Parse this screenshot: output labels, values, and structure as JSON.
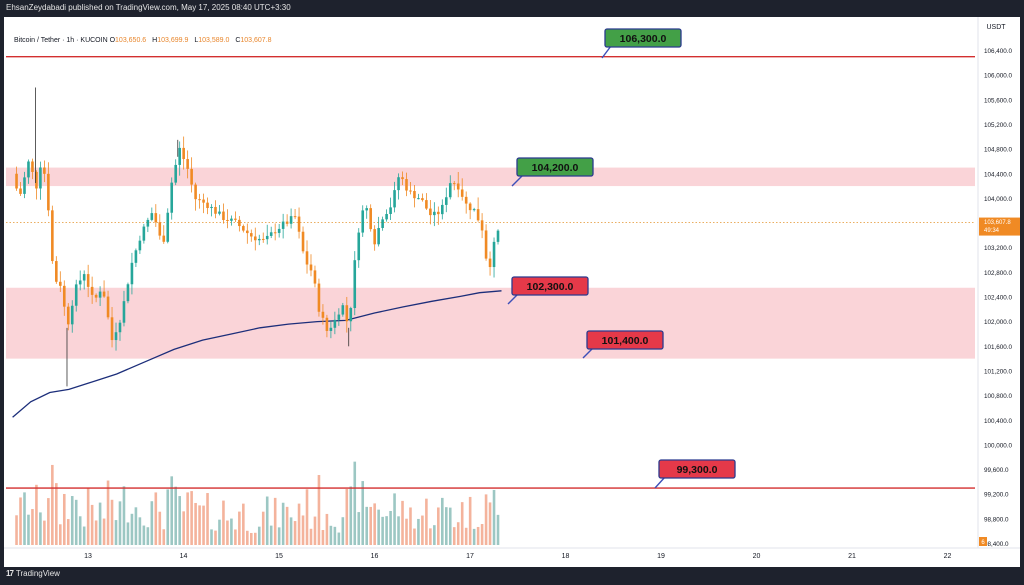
{
  "header": {
    "published_by": "EhsanZeydabadi published on TradingView.com, May 17, 2025 08:40 UTC+3:30"
  },
  "symbol": {
    "name": "Bitcoin / Tether · 1h · KUCOIN",
    "open_label": "O",
    "open": "103,650.6",
    "high_label": "H",
    "high": "103,699.9",
    "low_label": "L",
    "low": "103,589.0",
    "close_label": "C",
    "close": "103,607.8"
  },
  "footer": {
    "logo_mark": "17",
    "logo_text": "TradingView"
  },
  "colors": {
    "up": "#26a69a",
    "down": "#f08a24",
    "zone_fill": "#fad4d8",
    "level_line": "#d32f2f",
    "ma_line": "#1c2e7a",
    "green_label": "#43a047",
    "red_label": "#e53949",
    "vol_up": "#9cc7c3",
    "vol_down": "#f4b39c"
  },
  "chart_data": {
    "type": "candlestick",
    "currency": "USDT",
    "y_ticks": [
      "106,400.0",
      "106,000.0",
      "105,600.0",
      "105,200.0",
      "104,800.0",
      "104,400.0",
      "104,000.0",
      "103,600.0",
      "103,200.0",
      "102,800.0",
      "102,400.0",
      "102,000.0",
      "101,600.0",
      "101,200.0",
      "100,800.0",
      "100,400.0",
      "100,000.0",
      "99,600.0",
      "99,200.0",
      "98,800.0",
      "98,400.0"
    ],
    "y_tick_values": [
      106400,
      106000,
      105600,
      105200,
      104800,
      104400,
      104000,
      103600,
      103200,
      102800,
      102400,
      102000,
      101600,
      101200,
      100800,
      100400,
      100000,
      99600,
      99200,
      98800,
      98400
    ],
    "ylim": [
      98400,
      106500
    ],
    "x_ticks": [
      "13",
      "14",
      "15",
      "16",
      "17",
      "18",
      "19",
      "20",
      "21",
      "22"
    ],
    "x_tick_days": [
      13,
      14,
      15,
      16,
      17,
      18,
      19,
      20,
      21,
      22
    ],
    "xlim": [
      12.21,
      22.4
    ],
    "current_price": "103,607.8",
    "countdown": "49:34",
    "volume_badge": "6",
    "zones": [
      {
        "from": 104200,
        "to": 104500
      },
      {
        "from": 101400,
        "to": 102550
      }
    ],
    "levels": [
      {
        "label": "106,300.0",
        "value": 106300,
        "line": true,
        "color": "green"
      },
      {
        "label": "104,200.0",
        "value": 104200,
        "line": false,
        "color": "green"
      },
      {
        "label": "102,300.0",
        "value": 102300,
        "line": false,
        "color": "red"
      },
      {
        "label": "101,400.0",
        "value": 101400,
        "line": false,
        "color": "red"
      },
      {
        "label": "99,300.0",
        "value": 99300,
        "line": true,
        "color": "red"
      }
    ],
    "ma_points": [
      [
        12.21,
        100450
      ],
      [
        12.4,
        100700
      ],
      [
        12.6,
        100850
      ],
      [
        12.8,
        100900
      ],
      [
        13.0,
        101000
      ],
      [
        13.3,
        101150
      ],
      [
        13.6,
        101350
      ],
      [
        13.9,
        101550
      ],
      [
        14.2,
        101700
      ],
      [
        14.5,
        101800
      ],
      [
        14.8,
        101900
      ],
      [
        15.1,
        101960
      ],
      [
        15.4,
        102000
      ],
      [
        15.7,
        102020
      ],
      [
        16.0,
        102140
      ],
      [
        16.3,
        102240
      ],
      [
        16.6,
        102330
      ],
      [
        16.9,
        102410
      ],
      [
        17.1,
        102470
      ],
      [
        17.33,
        102500
      ]
    ],
    "key_points": [
      [
        12.21,
        104400
      ],
      [
        12.28,
        104000
      ],
      [
        12.38,
        104600
      ],
      [
        12.46,
        104200
      ],
      [
        12.52,
        104700
      ],
      [
        12.58,
        103950
      ],
      [
        12.64,
        102700
      ],
      [
        12.72,
        102600
      ],
      [
        12.78,
        101900
      ],
      [
        12.86,
        102500
      ],
      [
        12.96,
        102800
      ],
      [
        13.06,
        102300
      ],
      [
        13.15,
        102600
      ],
      [
        13.25,
        101700
      ],
      [
        13.35,
        102100
      ],
      [
        13.45,
        102900
      ],
      [
        13.55,
        103400
      ],
      [
        13.68,
        103800
      ],
      [
        13.78,
        103200
      ],
      [
        13.88,
        104300
      ],
      [
        13.96,
        104800
      ],
      [
        14.04,
        104500
      ],
      [
        14.12,
        104000
      ],
      [
        14.25,
        103900
      ],
      [
        14.4,
        103700
      ],
      [
        14.55,
        103600
      ],
      [
        14.7,
        103400
      ],
      [
        14.85,
        103300
      ],
      [
        14.97,
        103500
      ],
      [
        15.07,
        103600
      ],
      [
        15.17,
        103700
      ],
      [
        15.27,
        103000
      ],
      [
        15.35,
        102800
      ],
      [
        15.42,
        102200
      ],
      [
        15.5,
        101850
      ],
      [
        15.58,
        102000
      ],
      [
        15.66,
        102300
      ],
      [
        15.73,
        101900
      ],
      [
        15.82,
        103400
      ],
      [
        15.9,
        103950
      ],
      [
        16.0,
        103300
      ],
      [
        16.08,
        103700
      ],
      [
        16.18,
        103900
      ],
      [
        16.26,
        104400
      ],
      [
        16.36,
        104100
      ],
      [
        16.48,
        104000
      ],
      [
        16.6,
        103700
      ],
      [
        16.7,
        103800
      ],
      [
        16.8,
        104300
      ],
      [
        16.88,
        104200
      ],
      [
        16.96,
        103900
      ],
      [
        17.05,
        103800
      ],
      [
        17.13,
        103500
      ],
      [
        17.19,
        102800
      ],
      [
        17.26,
        103300
      ],
      [
        17.33,
        103620
      ]
    ]
  }
}
